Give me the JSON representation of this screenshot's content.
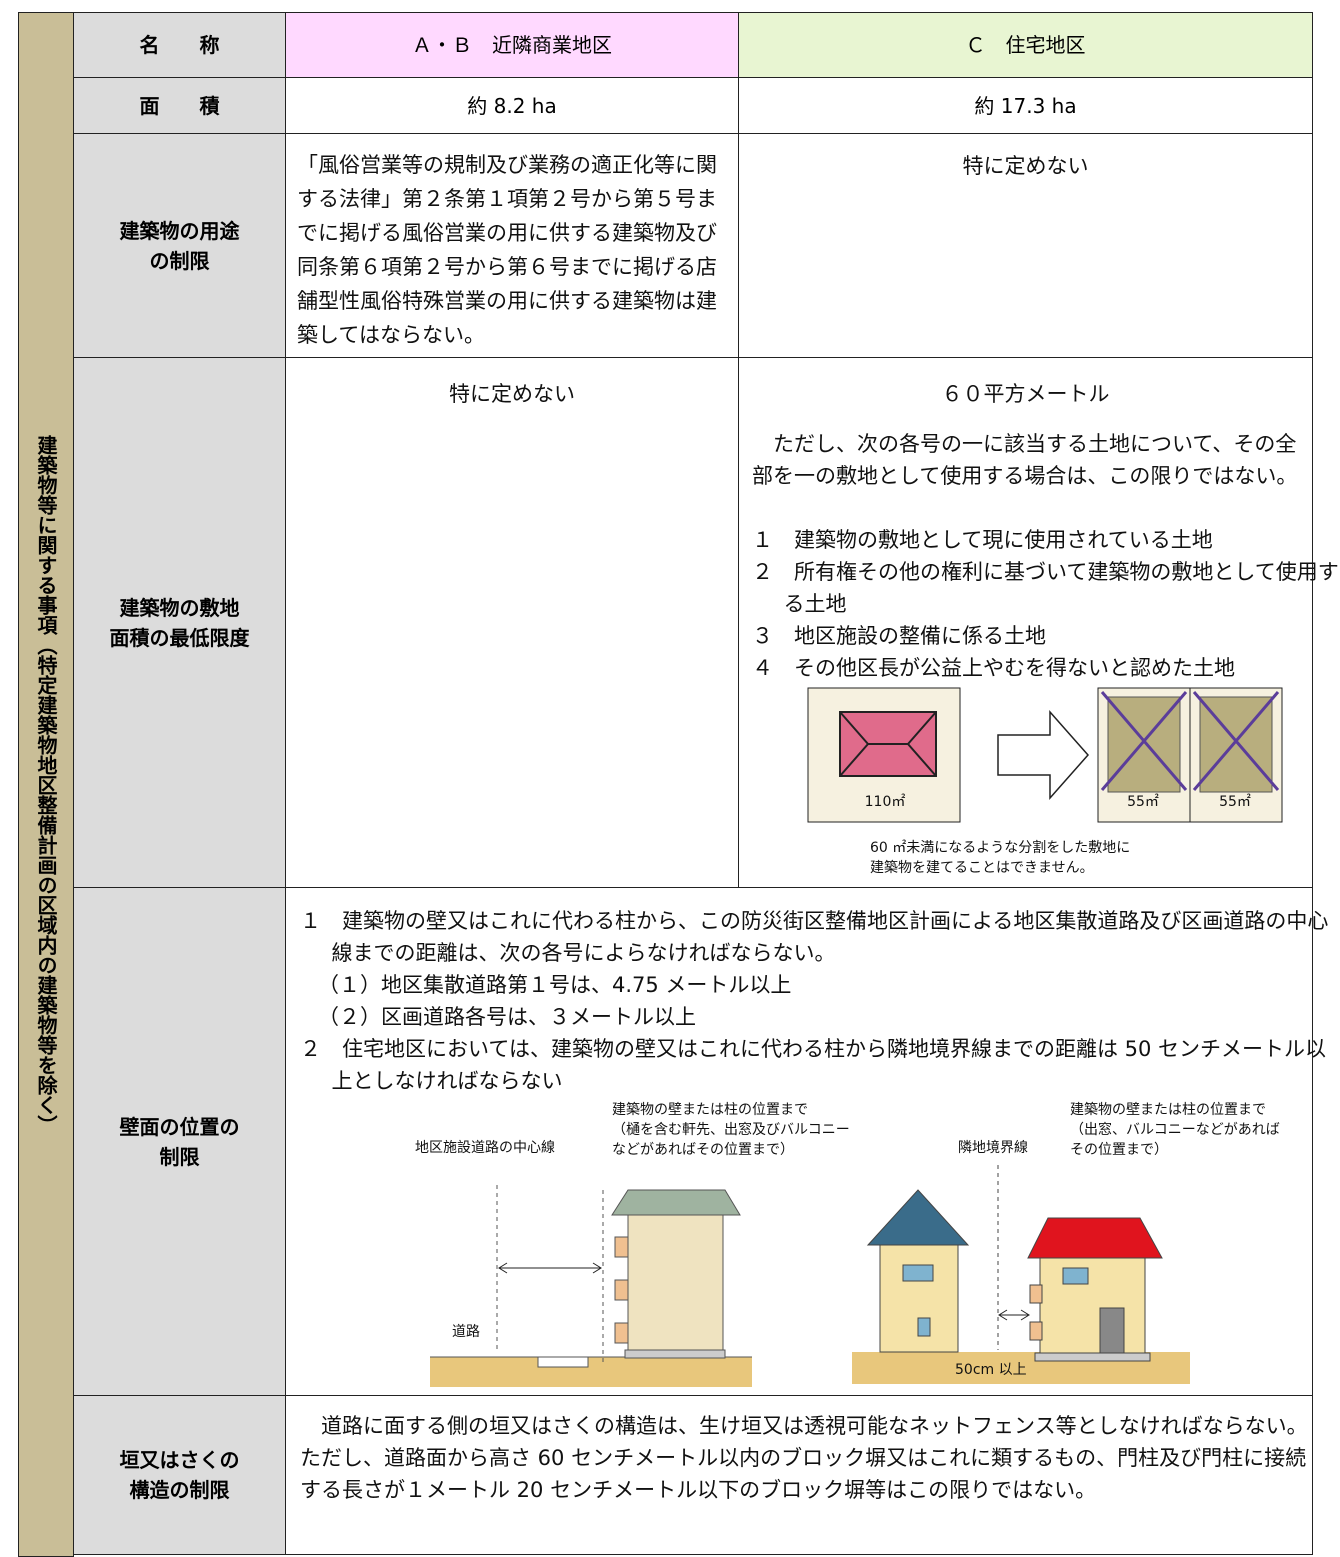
{
  "side_label": "建築物等に関する事項（特定建築物地区整備計画の区域内の建築物等を除く）",
  "table": {
    "header": {
      "label": "名　　称",
      "a": "Ａ・Ｂ　近隣商業地区",
      "c": "Ｃ　住宅地区"
    },
    "area": {
      "label": "面　　積",
      "a": "約 8.2 ha",
      "c": "約 17.3  ha"
    },
    "use": {
      "label": "建築物の用途\nの制限",
      "a": "「風俗営業等の規制及び業務の適正化等に関する法律」第２条第１項第２号から第５号までに掲げる風俗営業の用に供する建築物及び同条第６項第２号から第６号までに掲げる店舗型性風俗特殊営業の用に供する建築物は建築してはならない。",
      "c": "特に定めない"
    },
    "lot": {
      "label": "建築物の敷地\n面積の最低限度",
      "a": "特に定めない",
      "c": {
        "value": "６０平方メートル",
        "note": "ただし、次の各号の一に該当する土地について、その全部を一の敷地として使用する場合は、この限りではない。",
        "items": [
          "１　建築物の敷地として現に使用されている土地",
          "２　所有権その他の権利に基づいて建築物の敷地として使用する土地",
          "３　地区施設の整備に係る土地",
          "４　その他区長が公益上やむを得ないと認めた土地"
        ],
        "figure": {
          "before": "110㎡",
          "after": [
            "55㎡",
            "55㎡"
          ],
          "caption": "60 ㎡未満になるような分割をした敷地に\n建築物を建てることはできません。"
        }
      }
    },
    "wall": {
      "label": "壁面の位置の\n制限",
      "items": [
        {
          "text": "１　建築物の壁又はこれに代わる柱から、この防災街区整備地区計画による地区集散道路及び区画道路の中心線までの距離は、次の各号によらなければならない。",
          "subitems": [
            "（１）地区集散道路第１号は、4.75 メートル以上",
            "（２）区画道路各号は、３メートル以上"
          ]
        },
        {
          "text": "２　住宅地区においては、建築物の壁又はこれに代わる柱から隣地境界線までの距離は 50 センチメートル以上としなければならない"
        }
      ],
      "figure": {
        "centerline": "地区施設道路の中心線",
        "wall_note_left": "建築物の壁または柱の位置まで\n（樋を含む軒先、出窓及びバルコニー\nなどがあればその位置まで）",
        "road": "道路",
        "boundary": "隣地境界線",
        "wall_note_right": "建築物の壁または柱の位置まで\n（出窓、バルコニーなどがあれば\nその位置まで）",
        "distance": "50cm 以上"
      }
    },
    "fence": {
      "label": "垣又はさくの\n構造の制限",
      "text": "道路に面する側の垣又はさくの構造は、生け垣又は透視可能なネットフェンス等としなければならない。ただし、道路面から高さ 60 センチメートル以内のブロック塀又はこれに類するもの、門柱及び門柱に接続する長さが１メートル 20 センチメートル以下のブロック塀等はこの限りではない。"
    }
  }
}
